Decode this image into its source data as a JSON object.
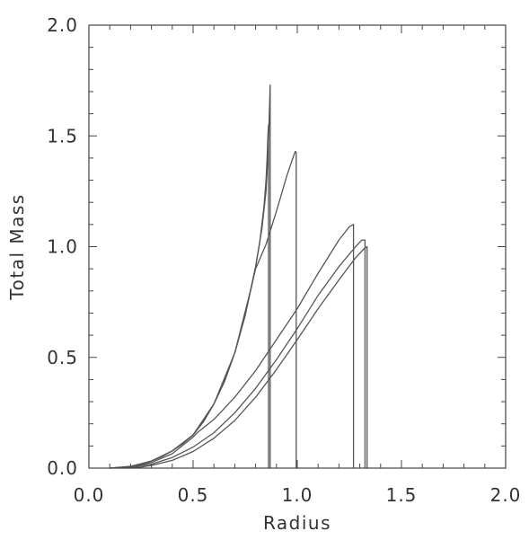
{
  "chart_data": {
    "type": "line",
    "title": "",
    "xlabel": "Radius",
    "ylabel": "Total Mass",
    "xlim": [
      0.0,
      2.0
    ],
    "ylim": [
      0.0,
      2.0
    ],
    "x_ticks": [
      "0.0",
      "0.5",
      "1.0",
      "1.5",
      "2.0"
    ],
    "y_ticks": [
      "0.0",
      "0.5",
      "1.0",
      "1.5",
      "2.0"
    ],
    "grid": false,
    "legend": "none",
    "line_color": "#555555",
    "series": [
      {
        "points": [
          [
            0.1,
            0.0
          ],
          [
            0.15,
            0.003
          ],
          [
            0.2,
            0.008
          ],
          [
            0.25,
            0.018
          ],
          [
            0.3,
            0.032
          ],
          [
            0.35,
            0.052
          ],
          [
            0.4,
            0.078
          ],
          [
            0.45,
            0.11
          ],
          [
            0.5,
            0.15
          ],
          [
            0.55,
            0.21
          ],
          [
            0.6,
            0.29
          ],
          [
            0.65,
            0.39
          ],
          [
            0.7,
            0.52
          ],
          [
            0.75,
            0.69
          ],
          [
            0.8,
            0.91
          ],
          [
            0.82,
            1.02
          ],
          [
            0.84,
            1.18
          ],
          [
            0.85,
            1.3
          ],
          [
            0.855,
            1.4
          ],
          [
            0.86,
            1.52
          ],
          [
            0.862,
            1.55
          ],
          [
            0.862,
            0.0
          ]
        ]
      },
      {
        "points": [
          [
            0.1,
            0.0
          ],
          [
            0.15,
            0.003
          ],
          [
            0.2,
            0.008
          ],
          [
            0.25,
            0.018
          ],
          [
            0.3,
            0.032
          ],
          [
            0.35,
            0.052
          ],
          [
            0.4,
            0.078
          ],
          [
            0.45,
            0.11
          ],
          [
            0.5,
            0.15
          ],
          [
            0.55,
            0.21
          ],
          [
            0.6,
            0.29
          ],
          [
            0.65,
            0.39
          ],
          [
            0.7,
            0.52
          ],
          [
            0.75,
            0.69
          ],
          [
            0.78,
            0.82
          ],
          [
            0.8,
            0.91
          ],
          [
            0.83,
            1.08
          ],
          [
            0.85,
            1.25
          ],
          [
            0.86,
            1.42
          ],
          [
            0.865,
            1.58
          ],
          [
            0.87,
            1.73
          ],
          [
            0.87,
            0.0
          ]
        ]
      },
      {
        "points": [
          [
            0.1,
            0.0
          ],
          [
            0.2,
            0.008
          ],
          [
            0.3,
            0.032
          ],
          [
            0.4,
            0.078
          ],
          [
            0.5,
            0.15
          ],
          [
            0.6,
            0.29
          ],
          [
            0.7,
            0.52
          ],
          [
            0.78,
            0.82
          ],
          [
            0.8,
            0.9
          ],
          [
            0.85,
            1.01
          ],
          [
            0.9,
            1.16
          ],
          [
            0.95,
            1.32
          ],
          [
            0.975,
            1.39
          ],
          [
            0.99,
            1.43
          ],
          [
            0.995,
            1.425
          ],
          [
            0.995,
            0.0
          ]
        ]
      },
      {
        "points": [
          [
            0.1,
            0.0
          ],
          [
            0.2,
            0.005
          ],
          [
            0.3,
            0.025
          ],
          [
            0.4,
            0.065
          ],
          [
            0.5,
            0.14
          ],
          [
            0.52,
            0.16
          ],
          [
            0.6,
            0.22
          ],
          [
            0.7,
            0.32
          ],
          [
            0.8,
            0.44
          ],
          [
            0.9,
            0.58
          ],
          [
            1.0,
            0.72
          ],
          [
            1.1,
            0.88
          ],
          [
            1.2,
            1.03
          ],
          [
            1.25,
            1.09
          ],
          [
            1.27,
            1.1
          ],
          [
            1.27,
            0.0
          ]
        ]
      },
      {
        "points": [
          [
            0.15,
            0.0
          ],
          [
            0.2,
            0.004
          ],
          [
            0.3,
            0.018
          ],
          [
            0.4,
            0.048
          ],
          [
            0.5,
            0.095
          ],
          [
            0.6,
            0.16
          ],
          [
            0.7,
            0.25
          ],
          [
            0.8,
            0.36
          ],
          [
            0.9,
            0.49
          ],
          [
            1.0,
            0.63
          ],
          [
            1.1,
            0.78
          ],
          [
            1.2,
            0.91
          ],
          [
            1.28,
            1.0
          ],
          [
            1.31,
            1.03
          ],
          [
            1.325,
            1.03
          ],
          [
            1.325,
            0.0
          ]
        ]
      },
      {
        "points": [
          [
            0.18,
            0.0
          ],
          [
            0.25,
            0.005
          ],
          [
            0.3,
            0.012
          ],
          [
            0.4,
            0.035
          ],
          [
            0.5,
            0.075
          ],
          [
            0.6,
            0.135
          ],
          [
            0.7,
            0.215
          ],
          [
            0.8,
            0.32
          ],
          [
            0.9,
            0.445
          ],
          [
            1.0,
            0.58
          ],
          [
            1.1,
            0.72
          ],
          [
            1.2,
            0.85
          ],
          [
            1.28,
            0.95
          ],
          [
            1.32,
            0.99
          ],
          [
            1.335,
            1.0
          ],
          [
            1.335,
            0.0
          ]
        ]
      }
    ]
  }
}
